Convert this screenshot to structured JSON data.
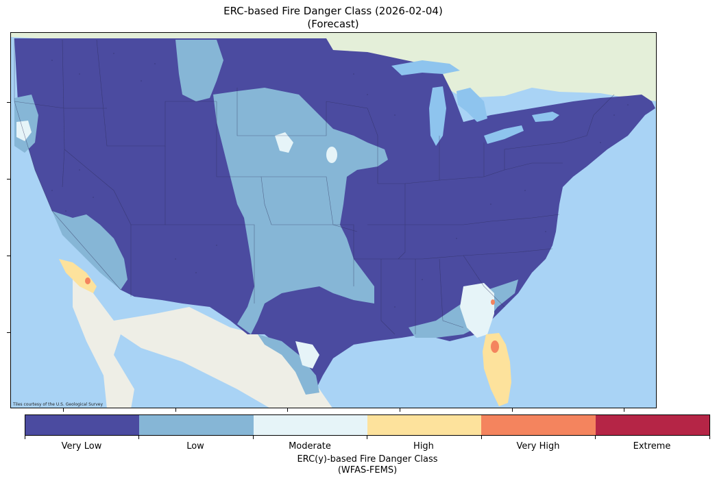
{
  "title": {
    "line1": "ERC-based Fire Danger Class (2026-02-04)",
    "line2": "(Forecast)"
  },
  "map": {
    "attribution": "Tiles courtesy of the U.S. Geological Survey",
    "colors": {
      "ocean": "#a9d3f5",
      "land": "#eeeee6",
      "canada_land": "#e4efd9",
      "lakes": "#8ec4ee",
      "state_border": "#2a2a55"
    }
  },
  "legend": {
    "title_line1": "ERC(y)-based Fire Danger Class",
    "title_line2": "(WFAS-FEMS)",
    "classes": [
      {
        "label": "Very Low",
        "color": "#4b4ba0"
      },
      {
        "label": "Low",
        "color": "#86b6d6"
      },
      {
        "label": "Moderate",
        "color": "#e6f4f8"
      },
      {
        "label": "High",
        "color": "#fde29c"
      },
      {
        "label": "Very High",
        "color": "#f4845e"
      },
      {
        "label": "Extreme",
        "color": "#b52546"
      }
    ]
  }
}
